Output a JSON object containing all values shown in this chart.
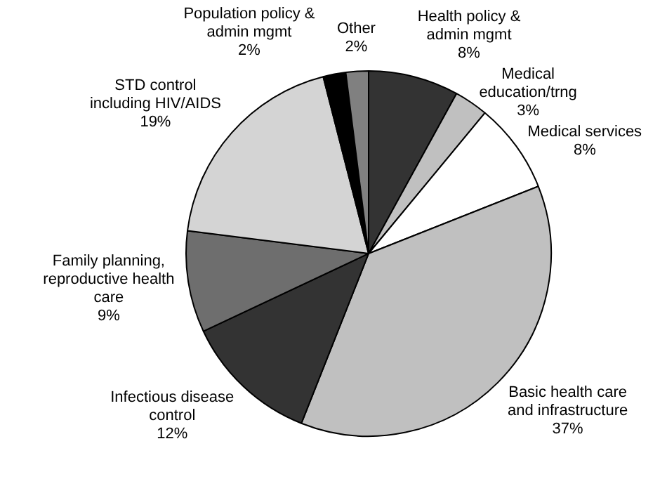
{
  "chart_data": {
    "type": "pie",
    "categories": [
      "Health policy & admin mgmt",
      "Medical education/trng",
      "Medical services",
      "Basic health care and infrastructure",
      "Infectious disease control",
      "Family planning, reproductive health care",
      "STD control including HIV/AIDS",
      "Population policy & admin mgmt",
      "Other"
    ],
    "values": [
      8,
      3,
      8,
      37,
      12,
      9,
      19,
      2,
      2
    ],
    "colors": [
      "#333333",
      "#c0c0c0",
      "#ffffff",
      "#c0c0c0",
      "#333333",
      "#6e6e6e",
      "#d4d4d4",
      "#000000",
      "#808080"
    ],
    "value_labels": [
      "8%",
      "3%",
      "8%",
      "37%",
      "12%",
      "9%",
      "19%",
      "2%",
      "2%"
    ],
    "legend": false
  }
}
